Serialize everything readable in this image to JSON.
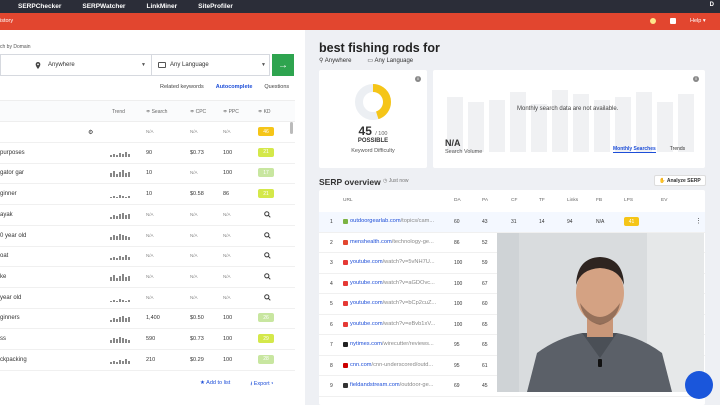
{
  "topnav": {
    "items": [
      "SERPChecker",
      "SERPWatcher",
      "LinkMiner",
      "SiteProfiler"
    ],
    "user_initial": "D"
  },
  "subnav": {
    "history_label": "istory",
    "help_label": "Help"
  },
  "search": {
    "search_by_label": "ch by Domain",
    "location": "Anywhere",
    "language": "Any Language",
    "go_icon": "arrow-right"
  },
  "mode_tabs": [
    "Related keywords",
    "Autocomplete",
    "Questions"
  ],
  "active_mode": "Autocomplete",
  "table": {
    "headers": [
      "Trend",
      "Search",
      "CPC",
      "PPC",
      "KD"
    ],
    "rows": [
      {
        "keyword": "",
        "search": "N/A",
        "cpc": "N/A",
        "ppc": "N/A",
        "kd": "46",
        "kd_color": "#f5c518"
      },
      {
        "keyword": "purposes",
        "search": "90",
        "cpc": "$0.73",
        "ppc": "100",
        "kd": "21",
        "kd_color": "#d4e84a"
      },
      {
        "keyword": "gator gar",
        "search": "10",
        "cpc": "N/A",
        "ppc": "100",
        "kd": "17",
        "kd_color": "#c8e6a0"
      },
      {
        "keyword": "ginner",
        "search": "10",
        "cpc": "$0.58",
        "ppc": "86",
        "kd": "21",
        "kd_color": "#d4e84a"
      },
      {
        "keyword": "ayak",
        "search": "N/A",
        "cpc": "N/A",
        "ppc": "N/A",
        "kd": ""
      },
      {
        "keyword": "0 year old",
        "search": "N/A",
        "cpc": "N/A",
        "ppc": "N/A",
        "kd": ""
      },
      {
        "keyword": "oat",
        "search": "N/A",
        "cpc": "N/A",
        "ppc": "N/A",
        "kd": ""
      },
      {
        "keyword": "ke",
        "search": "N/A",
        "cpc": "N/A",
        "ppc": "N/A",
        "kd": ""
      },
      {
        "keyword": "year old",
        "search": "N/A",
        "cpc": "N/A",
        "ppc": "N/A",
        "kd": ""
      },
      {
        "keyword": "ginners",
        "search": "1,400",
        "cpc": "$0.50",
        "ppc": "100",
        "kd": "26",
        "kd_color": "#c8e6a0"
      },
      {
        "keyword": "ss",
        "search": "590",
        "cpc": "$0.73",
        "ppc": "100",
        "kd": "29",
        "kd_color": "#d4e84a"
      },
      {
        "keyword": "ckpacking",
        "search": "210",
        "cpc": "$0.29",
        "ppc": "100",
        "kd": "28",
        "kd_color": "#c8e6a0"
      }
    ]
  },
  "bottom_actions": {
    "add_to_list": "Add to list",
    "export": "Export"
  },
  "keyword": {
    "title": "best fishing rods for",
    "location": "Anywhere",
    "language": "Any Language"
  },
  "kd_card": {
    "value": "45",
    "max": "/ 100",
    "status": "POSSIBLE",
    "label": "Keyword Difficulty",
    "fraction": 0.45
  },
  "volume_card": {
    "message": "Monthly search data are not available.",
    "value": "N/A",
    "label": "Search Volume",
    "tabs": [
      "Monthly Searches",
      "Trends"
    ]
  },
  "serp": {
    "title": "SERP overview",
    "time": "Just now",
    "analyze_button": "Analyze SERP",
    "headers": [
      "URL",
      "DA",
      "PA",
      "CF",
      "TF",
      "Links",
      "FB",
      "LPS",
      "EV"
    ],
    "rows": [
      {
        "rank": "1",
        "domain": "outdoorgearlab.com",
        "path": "/topics/cam...",
        "da": "60",
        "pa": "43",
        "cf": "31",
        "tf": "14",
        "links": "94",
        "fb": "N/A",
        "lps": "41",
        "favicon": "#7cb342"
      },
      {
        "rank": "2",
        "domain": "menshealth.com",
        "path": "/technology-ge...",
        "da": "86",
        "pa": "52",
        "favicon": "#e2462f"
      },
      {
        "rank": "3",
        "domain": "youtube.com",
        "path": "/watch?v=5vNH7U...",
        "da": "100",
        "pa": "59",
        "favicon": "#e53935"
      },
      {
        "rank": "4",
        "domain": "youtube.com",
        "path": "/watch?v=aGDOvc...",
        "da": "100",
        "pa": "67",
        "favicon": "#e53935"
      },
      {
        "rank": "5",
        "domain": "youtube.com",
        "path": "/watch?v=bCp2cuZ...",
        "da": "100",
        "pa": "60",
        "favicon": "#e53935"
      },
      {
        "rank": "6",
        "domain": "youtube.com",
        "path": "/watch?v=eBvb1xV...",
        "da": "100",
        "pa": "65",
        "favicon": "#e53935"
      },
      {
        "rank": "7",
        "domain": "nytimes.com",
        "path": "/wirecutter/reviews...",
        "da": "95",
        "pa": "65",
        "favicon": "#222222"
      },
      {
        "rank": "8",
        "domain": "cnn.com",
        "path": "/cnn-underscored/outd...",
        "da": "95",
        "pa": "61",
        "favicon": "#cc0000"
      },
      {
        "rank": "9",
        "domain": "fieldandstream.com",
        "path": "/outdoor-ge...",
        "da": "69",
        "pa": "45",
        "favicon": "#333333"
      }
    ]
  }
}
